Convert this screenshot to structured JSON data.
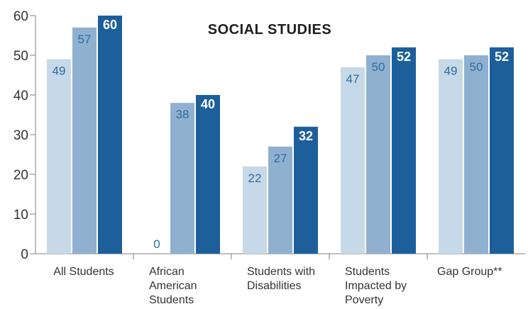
{
  "chart_data": {
    "type": "bar",
    "title": "SOCIAL STUDIES",
    "xlabel": "",
    "ylabel": "",
    "ylim": [
      0,
      60
    ],
    "yticks": [
      0,
      10,
      20,
      30,
      40,
      50,
      60
    ],
    "grid": false,
    "legend": "none",
    "categories": [
      [
        "All Students"
      ],
      [
        "African",
        "American",
        "Students"
      ],
      [
        "Students with",
        "Disabilities"
      ],
      [
        "Students",
        "Impacted by",
        "Poverty"
      ],
      [
        "Gap Group**"
      ]
    ],
    "series": [
      {
        "values": [
          49,
          0,
          22,
          47,
          49
        ],
        "color": "#c6d9e8",
        "label_color": "#2f6aa3",
        "label_bold": false
      },
      {
        "values": [
          57,
          38,
          27,
          50,
          50
        ],
        "color": "#8fb1cf",
        "label_color": "#2f6aa3",
        "label_bold": false
      },
      {
        "values": [
          60,
          40,
          32,
          52,
          52
        ],
        "color": "#1d5f9b",
        "label_color": "#ffffff",
        "label_bold": true
      }
    ]
  }
}
